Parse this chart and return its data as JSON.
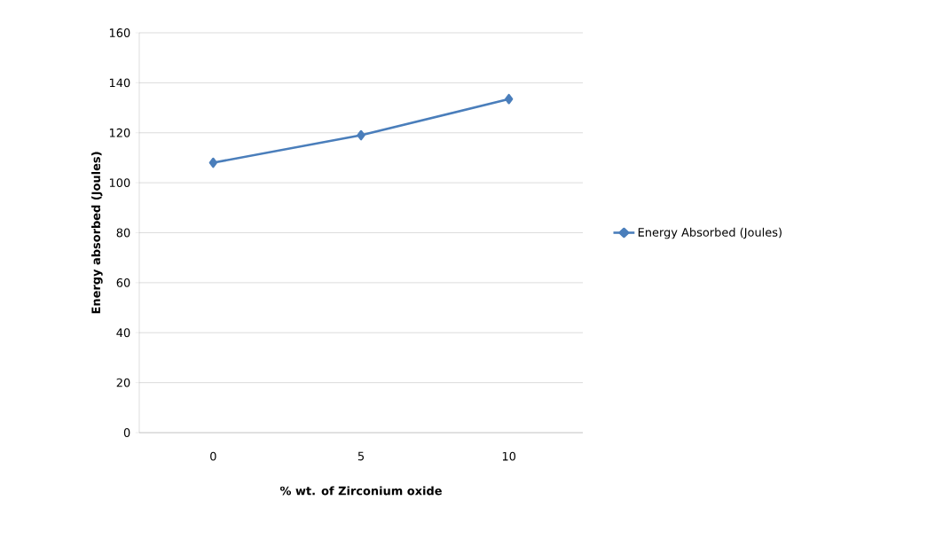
{
  "chart_data": {
    "type": "line",
    "xlabel": "% wt. of Zirconium oxide",
    "ylabel": "Energy absorbed (Joules)",
    "categories": [
      "0",
      "5",
      "10"
    ],
    "series": [
      {
        "name": "Energy Absorbed (Joules)",
        "color": "#4a7ebb",
        "values": [
          108,
          119,
          133.5
        ]
      }
    ],
    "ylim": [
      0,
      160
    ],
    "yticks": [
      0,
      20,
      40,
      60,
      80,
      100,
      120,
      140,
      160
    ],
    "grid": "y",
    "legend": "right",
    "marker": "diamond",
    "line_style": "solid"
  }
}
